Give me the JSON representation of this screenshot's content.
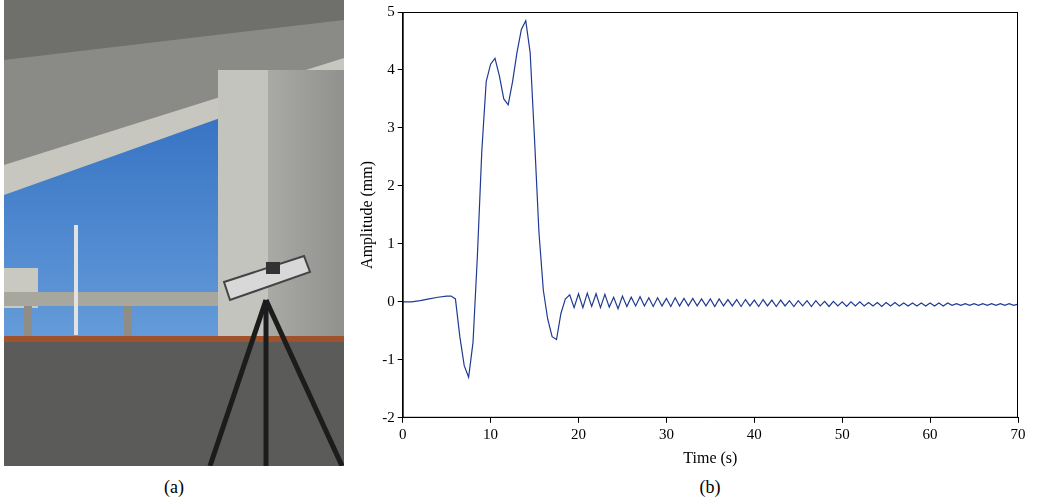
{
  "captions": [
    "(a)",
    "(b)"
  ],
  "chart_data": {
    "type": "line",
    "x_label": "Time (s)",
    "y_label": "Amplitude (mm)",
    "color": "#1f3a93",
    "grid": false,
    "xlim": [
      0,
      70
    ],
    "xticks": [
      0,
      10,
      20,
      30,
      40,
      50,
      60,
      70
    ],
    "ylim": [
      -2,
      5
    ],
    "yticks": [
      -2,
      -1,
      0,
      1,
      2,
      3,
      4,
      5
    ],
    "x": [
      0,
      1,
      2,
      3,
      4,
      5,
      5.5,
      6,
      6.5,
      7,
      7.5,
      8,
      8.5,
      9,
      9.5,
      10,
      10.5,
      11,
      11.5,
      12,
      12.5,
      13,
      13.5,
      14,
      14.5,
      15,
      15.5,
      16,
      16.5,
      17,
      17.5,
      18,
      18.5,
      19,
      19.5,
      20,
      20.5,
      21,
      21.5,
      22,
      22.5,
      23,
      23.5,
      24,
      24.5,
      25,
      25.5,
      26,
      26.5,
      27,
      27.5,
      28,
      28.5,
      29,
      29.5,
      30,
      30.5,
      31,
      31.5,
      32,
      32.5,
      33,
      33.5,
      34,
      34.5,
      35,
      35.5,
      36,
      36.5,
      37,
      37.5,
      38,
      38.5,
      39,
      39.5,
      40,
      40.5,
      41,
      41.5,
      42,
      42.5,
      43,
      43.5,
      44,
      44.5,
      45,
      45.5,
      46,
      46.5,
      47,
      47.5,
      48,
      48.5,
      49,
      49.5,
      50,
      50.5,
      51,
      51.5,
      52,
      52.5,
      53,
      53.5,
      54,
      54.5,
      55,
      55.5,
      56,
      56.5,
      57,
      57.5,
      58,
      58.5,
      59,
      59.5,
      60,
      60.5,
      61,
      61.5,
      62,
      62.5,
      63,
      63.5,
      64,
      64.5,
      65,
      65.5,
      66,
      66.5,
      67,
      67.5,
      68,
      68.5,
      69,
      69.5,
      70
    ],
    "values": [
      0,
      0,
      0.02,
      0.05,
      0.08,
      0.1,
      0.1,
      0.05,
      -0.6,
      -1.1,
      -1.3,
      -0.7,
      0.8,
      2.6,
      3.8,
      4.1,
      4.2,
      3.9,
      3.5,
      3.4,
      3.8,
      4.3,
      4.7,
      4.85,
      4.3,
      2.8,
      1.2,
      0.2,
      -0.3,
      -0.6,
      -0.65,
      -0.2,
      0.05,
      0.12,
      -0.1,
      0.14,
      -0.1,
      0.15,
      -0.08,
      0.14,
      -0.1,
      0.13,
      -0.09,
      0.08,
      -0.12,
      0.1,
      -0.08,
      0.08,
      -0.07,
      0.09,
      -0.07,
      0.07,
      -0.08,
      0.07,
      -0.07,
      0.06,
      -0.08,
      0.07,
      -0.07,
      0.06,
      -0.07,
      0.06,
      -0.07,
      0.05,
      -0.07,
      0.05,
      -0.08,
      0.05,
      -0.07,
      0.04,
      -0.07,
      0.04,
      -0.08,
      0.04,
      -0.07,
      0.03,
      -0.08,
      0.04,
      -0.07,
      0.03,
      -0.08,
      0.03,
      -0.07,
      0.02,
      -0.08,
      0.02,
      -0.07,
      0.02,
      -0.08,
      0.02,
      -0.07,
      0.01,
      -0.08,
      0.01,
      -0.07,
      0,
      -0.08,
      0,
      -0.07,
      0,
      -0.07,
      -0.01,
      -0.07,
      -0.01,
      -0.08,
      -0.01,
      -0.07,
      -0.01,
      -0.07,
      -0.02,
      -0.07,
      -0.02,
      -0.07,
      -0.02,
      -0.07,
      -0.02,
      -0.07,
      -0.02,
      -0.07,
      -0.02,
      -0.06,
      -0.03,
      -0.06,
      -0.03,
      -0.06,
      -0.03,
      -0.06,
      -0.03,
      -0.06,
      -0.03,
      -0.06,
      -0.03,
      -0.06,
      -0.03,
      -0.06,
      -0.04
    ]
  }
}
